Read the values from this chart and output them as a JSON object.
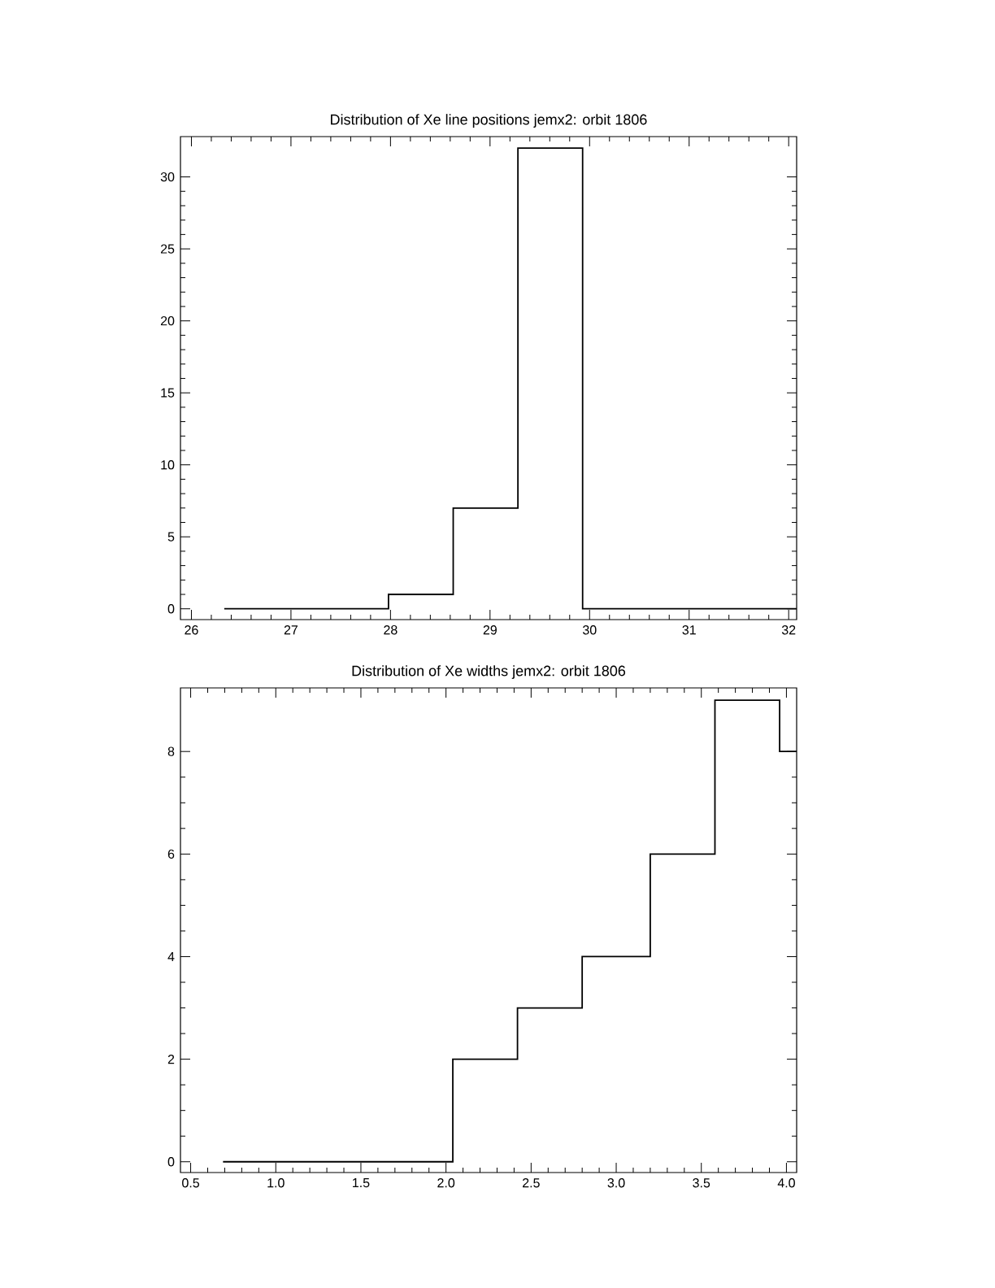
{
  "chart_data": [
    {
      "type": "histogram",
      "title": "Distribution of Xe line positions jemx2: orbit 1806",
      "bins": [
        26.33,
        27.98,
        28.63,
        29.28,
        29.93,
        32.08
      ],
      "values": [
        0,
        1,
        7,
        32,
        0
      ],
      "color": "#000000",
      "xlim": [
        25.89,
        32.08
      ],
      "ylim": [
        -0.75,
        32.8
      ],
      "xticks": [
        26,
        27,
        28,
        29,
        30,
        31,
        32
      ],
      "yticks": [
        0,
        5,
        10,
        15,
        20,
        25,
        30
      ],
      "grid": false
    },
    {
      "type": "histogram",
      "title": "Distribution of Xe widths jemx2: orbit 1806",
      "bins": [
        0.69,
        2.04,
        2.42,
        2.8,
        3.2,
        3.58,
        3.96,
        4.06
      ],
      "values": [
        0,
        2,
        3,
        4,
        6,
        9,
        8
      ],
      "color": "#000000",
      "xlim": [
        0.44,
        4.06
      ],
      "ylim": [
        -0.21,
        9.24
      ],
      "xticks": [
        {
          "value": 0.5,
          "label": "0.5"
        },
        {
          "value": 1.0,
          "label": "1.0"
        },
        {
          "value": 1.5,
          "label": "1.5"
        },
        {
          "value": 2.0,
          "label": "2.0"
        },
        {
          "value": 2.5,
          "label": "2.5"
        },
        {
          "value": 3.0,
          "label": "3.0"
        },
        {
          "value": 3.5,
          "label": "3.5"
        },
        {
          "value": 4.0,
          "label": "4.0"
        }
      ],
      "yticks": [
        0,
        2,
        4,
        6,
        8
      ],
      "grid": false
    }
  ]
}
